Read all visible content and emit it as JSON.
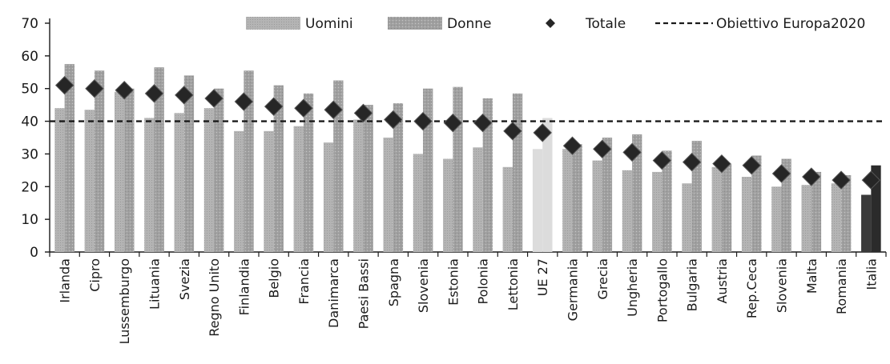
{
  "chart_data": {
    "type": "bar",
    "categories": [
      "Irlanda",
      "Cipro",
      "Lussemburgo",
      "Lituania",
      "Svezia",
      "Regno Unito",
      "Finlandia",
      "Belgio",
      "Francia",
      "Danimarca",
      "Paesi Bassi",
      "Spagna",
      "Slovenia",
      "Estonia",
      "Polonia",
      "Lettonia",
      "UE 27",
      "Germania",
      "Grecia",
      "Ungheria",
      "Portogallo",
      "Bulgaria",
      "Austria",
      "Rep.Ceca",
      "Slovenia",
      "Malta",
      "Romania",
      "Italia"
    ],
    "series": [
      {
        "name": "Uomini",
        "type": "bar",
        "values": [
          44.0,
          43.5,
          49.0,
          41.0,
          42.5,
          44.0,
          37.0,
          37.0,
          38.5,
          33.5,
          40.5,
          35.0,
          30.0,
          28.5,
          32.0,
          26.0,
          31.5,
          31.5,
          28.0,
          25.0,
          24.5,
          21.0,
          26.0,
          23.0,
          20.0,
          20.5,
          21.0,
          17.5
        ]
      },
      {
        "name": "Donne",
        "type": "bar",
        "values": [
          57.5,
          55.5,
          50.0,
          56.5,
          54.0,
          50.0,
          55.5,
          51.0,
          48.5,
          52.5,
          45.0,
          45.5,
          50.0,
          50.5,
          47.0,
          48.5,
          41.0,
          33.0,
          35.0,
          36.0,
          31.0,
          34.0,
          27.0,
          29.5,
          28.5,
          24.5,
          23.5,
          26.5
        ]
      },
      {
        "name": "Totale",
        "type": "marker",
        "values": [
          51.0,
          50.0,
          49.5,
          48.5,
          48.0,
          47.0,
          46.0,
          44.5,
          44.0,
          43.5,
          42.5,
          40.5,
          40.0,
          39.5,
          39.5,
          37.0,
          36.5,
          32.5,
          31.5,
          30.5,
          28.0,
          27.5,
          27.0,
          26.5,
          24.0,
          23.0,
          22.0,
          22.0
        ]
      }
    ],
    "target": {
      "name": "Obiettivo Europa2020",
      "value": 40
    },
    "yticks": [
      0,
      10,
      20,
      30,
      40,
      50,
      60,
      70
    ],
    "ylim": [
      0,
      70
    ],
    "title": "",
    "xlabel": "",
    "ylabel": "",
    "legend_position": "top",
    "grid": false,
    "highlight": {
      "UE 27": "light",
      "Italia": "dark"
    },
    "colors": {
      "uomini": "#b4b4b4",
      "donne": "#a0a0a0",
      "totale": "#262626",
      "target": "#1a1a1a",
      "ue27": "#dcdcdc",
      "italia": "#2b2b2b",
      "axis": "#1a1a1a"
    }
  }
}
